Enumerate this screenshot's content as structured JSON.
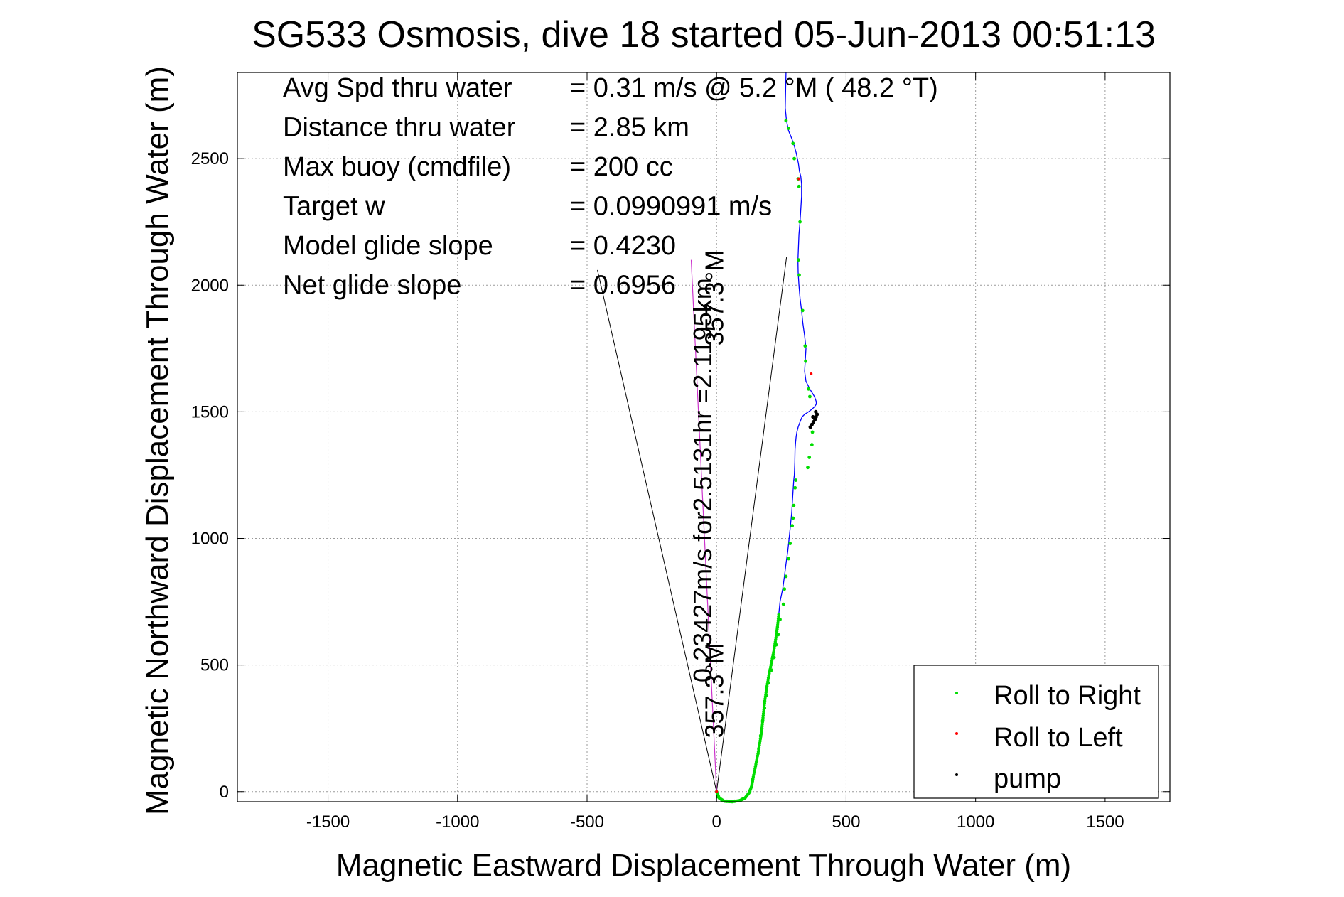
{
  "chart_data": {
    "type": "line",
    "title": "SG533 Osmosis, dive 18 started 05-Jun-2013 00:51:13",
    "xlabel": "Magnetic Eastward Displacement Through Water (m)",
    "ylabel": "Magnetic Northward Displacement Through Water (m)",
    "xlim": [
      -1850,
      1750
    ],
    "ylim": [
      -40,
      2840
    ],
    "xticks": [
      -1500,
      -1000,
      -500,
      0,
      500,
      1000,
      1500
    ],
    "yticks": [
      0,
      500,
      1000,
      1500,
      2000,
      2500
    ],
    "grid": true,
    "colors": {
      "track": "#0000ff",
      "roll_right": "#00dd00",
      "roll_left": "#ff0000",
      "pump": "#000000",
      "heading": "#cc33cc",
      "cone": "#000000"
    },
    "stats": [
      {
        "label": "Avg Spd thru water",
        "value": "=  0.31 m/s @   5.2 °M ( 48.2 °T)"
      },
      {
        "label": "Distance thru water",
        "value": "=  2.85 km"
      },
      {
        "label": "Max buoy (cmdfile)",
        "value": "= 200 cc"
      },
      {
        "label": "Target w",
        "value": "= 0.0990991 m/s"
      },
      {
        "label": "Model glide slope",
        "value": "= 0.4230"
      },
      {
        "label": "Net glide slope",
        "value": "= 0.6956"
      }
    ],
    "annotations": [
      {
        "text": "0.23427m/s for2.5131hr =2.1195km",
        "x": -20,
        "y": 1230
      },
      {
        "text": "357.3°M",
        "x": 25,
        "y": 1950
      },
      {
        "text": "357.3°M",
        "x": 25,
        "y": 400
      }
    ],
    "legend": {
      "placement": "bottom-right",
      "entries": [
        {
          "label": "Roll to Right",
          "series": "roll_right"
        },
        {
          "label": "Roll to Left",
          "series": "roll_left"
        },
        {
          "label": "pump",
          "series": "pump"
        }
      ]
    },
    "track": {
      "x": [
        0,
        10,
        30,
        60,
        90,
        110,
        125,
        135,
        140,
        150,
        160,
        168,
        175,
        180,
        185,
        192,
        200,
        210,
        220,
        228,
        235,
        240,
        245,
        255,
        262,
        268,
        275,
        280,
        285,
        290,
        293,
        296,
        298,
        300,
        302,
        303,
        305,
        307,
        310,
        315,
        322,
        330,
        340,
        355,
        368,
        378,
        385,
        385,
        378,
        360,
        345,
        340,
        342,
        345,
        340,
        333,
        328,
        322,
        318,
        315,
        314,
        316,
        318,
        322,
        325,
        328,
        328,
        325,
        320,
        316,
        312,
        308,
        300,
        290,
        278,
        270,
        265,
        268
      ],
      "y": [
        0,
        -25,
        -38,
        -40,
        -35,
        -25,
        -5,
        20,
        50,
        100,
        150,
        200,
        250,
        300,
        350,
        400,
        450,
        500,
        550,
        600,
        650,
        700,
        750,
        800,
        850,
        900,
        950,
        1000,
        1050,
        1100,
        1150,
        1200,
        1230,
        1250,
        1300,
        1350,
        1380,
        1400,
        1420,
        1440,
        1460,
        1480,
        1490,
        1500,
        1510,
        1520,
        1530,
        1540,
        1560,
        1590,
        1620,
        1660,
        1700,
        1750,
        1800,
        1850,
        1900,
        1950,
        2000,
        2050,
        2100,
        2150,
        2200,
        2250,
        2300,
        2350,
        2400,
        2430,
        2450,
        2480,
        2500,
        2520,
        2550,
        2580,
        2610,
        2650,
        2700,
        2840
      ]
    },
    "roll_right_points": [
      [
        5,
        -20
      ],
      [
        20,
        -33
      ],
      [
        40,
        -38
      ],
      [
        70,
        -38
      ],
      [
        100,
        -30
      ],
      [
        128,
        0
      ],
      [
        138,
        40
      ],
      [
        146,
        80
      ],
      [
        155,
        120
      ],
      [
        163,
        170
      ],
      [
        170,
        220
      ],
      [
        178,
        280
      ],
      [
        185,
        330
      ],
      [
        192,
        380
      ],
      [
        200,
        430
      ],
      [
        212,
        480
      ],
      [
        222,
        530
      ],
      [
        230,
        580
      ],
      [
        238,
        620
      ],
      [
        245,
        680
      ],
      [
        258,
        740
      ],
      [
        262,
        800
      ],
      [
        268,
        850
      ],
      [
        278,
        920
      ],
      [
        284,
        980
      ],
      [
        292,
        1050
      ],
      [
        295,
        1080
      ],
      [
        298,
        1130
      ],
      [
        303,
        1200
      ],
      [
        306,
        1230
      ],
      [
        352,
        1280
      ],
      [
        358,
        1320
      ],
      [
        368,
        1370
      ],
      [
        370,
        1420
      ],
      [
        360,
        1560
      ],
      [
        355,
        1590
      ],
      [
        344,
        1700
      ],
      [
        342,
        1760
      ],
      [
        332,
        1900
      ],
      [
        319,
        2040
      ],
      [
        316,
        2100
      ],
      [
        322,
        2250
      ],
      [
        318,
        2390
      ],
      [
        315,
        2420
      ],
      [
        300,
        2500
      ],
      [
        295,
        2560
      ],
      [
        278,
        2620
      ],
      [
        268,
        2650
      ]
    ],
    "roll_left_points": [
      [
        0,
        0
      ],
      [
        365,
        1650
      ],
      [
        318,
        2420
      ]
    ],
    "pump_points": [
      [
        362,
        1440
      ],
      [
        368,
        1450
      ],
      [
        374,
        1460
      ],
      [
        380,
        1470
      ],
      [
        384,
        1480
      ],
      [
        388,
        1490
      ],
      [
        383,
        1500
      ],
      [
        372,
        1480
      ]
    ],
    "heading_line": {
      "x": [
        0,
        -98
      ],
      "y": [
        0,
        2100
      ]
    },
    "cone_left": {
      "x": [
        0,
        -460
      ],
      "y": [
        0,
        2060
      ]
    },
    "cone_right": {
      "x": [
        0,
        270
      ],
      "y": [
        0,
        2110
      ]
    }
  }
}
